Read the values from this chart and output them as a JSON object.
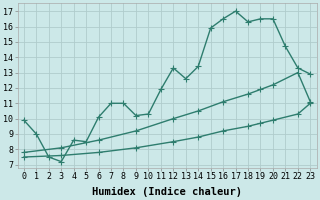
{
  "title": "",
  "xlabel": "Humidex (Indice chaleur)",
  "ylabel": "",
  "bg_color": "#cce8e8",
  "grid_color": "#b8d8d8",
  "line_color": "#2e7d6e",
  "xlim": [
    -0.5,
    23.5
  ],
  "ylim": [
    6.8,
    17.5
  ],
  "xticks": [
    0,
    1,
    2,
    3,
    4,
    5,
    6,
    7,
    8,
    9,
    10,
    11,
    12,
    13,
    14,
    15,
    16,
    17,
    18,
    19,
    20,
    21,
    22,
    23
  ],
  "yticks": [
    7,
    8,
    9,
    10,
    11,
    12,
    13,
    14,
    15,
    16,
    17
  ],
  "line1_x": [
    0,
    1,
    2,
    3,
    4,
    5,
    6,
    7,
    8,
    9,
    10,
    11,
    12,
    13,
    14,
    15,
    16,
    17,
    18,
    19,
    20,
    21,
    22,
    23
  ],
  "line1_y": [
    9.9,
    9.0,
    7.5,
    7.2,
    8.6,
    8.5,
    10.1,
    11.0,
    11.0,
    10.2,
    10.3,
    11.9,
    13.3,
    12.6,
    13.4,
    15.9,
    16.5,
    17.0,
    16.3,
    16.5,
    16.5,
    14.7,
    13.3,
    12.9
  ],
  "line2_x": [
    0,
    3,
    6,
    9,
    12,
    14,
    16,
    18,
    19,
    20,
    22,
    23
  ],
  "line2_y": [
    7.8,
    8.1,
    8.6,
    9.2,
    10.0,
    10.5,
    11.1,
    11.6,
    11.9,
    12.2,
    13.0,
    11.1
  ],
  "line3_x": [
    0,
    3,
    6,
    9,
    12,
    14,
    16,
    18,
    19,
    20,
    22,
    23
  ],
  "line3_y": [
    7.5,
    7.6,
    7.8,
    8.1,
    8.5,
    8.8,
    9.2,
    9.5,
    9.7,
    9.9,
    10.3,
    11.0
  ],
  "markersize": 2.5,
  "linewidth": 1.0,
  "xlabel_fontsize": 7.5,
  "tick_fontsize": 6.0
}
